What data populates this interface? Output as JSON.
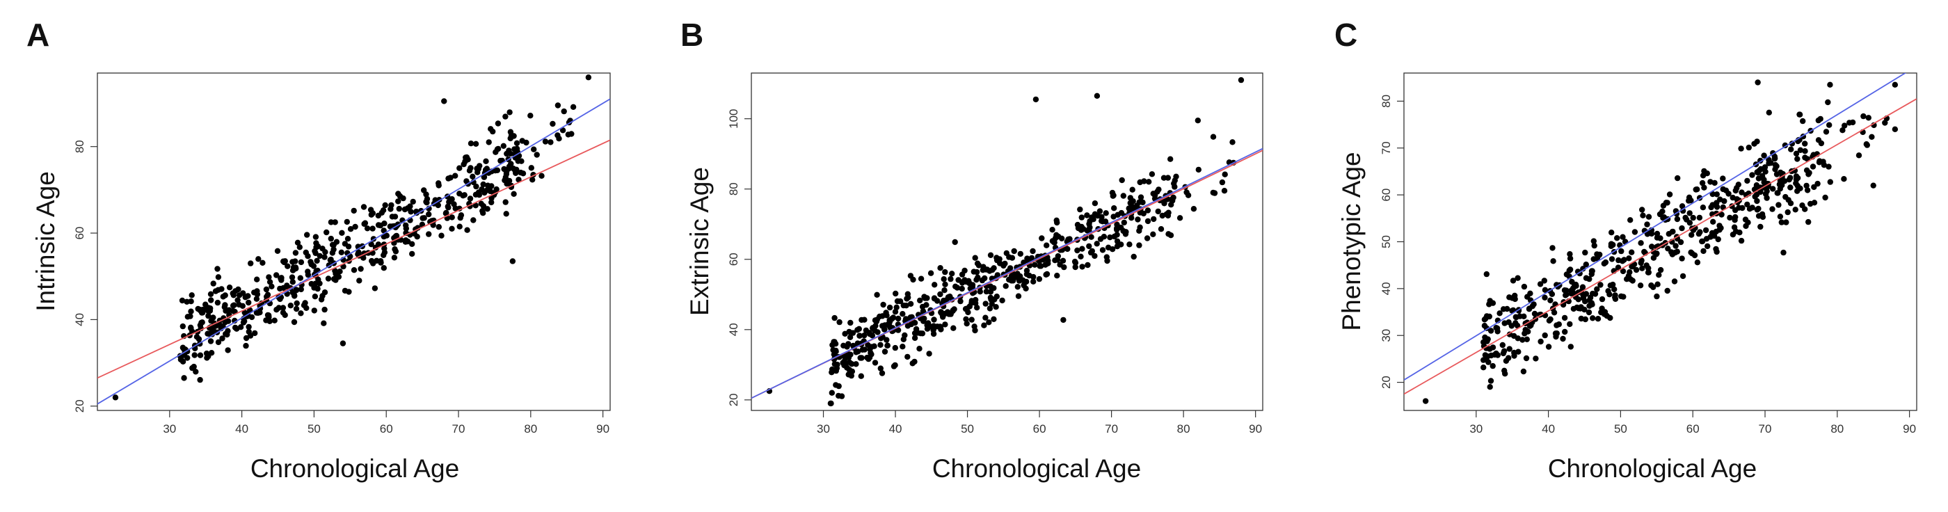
{
  "colors": {
    "point": "#000000",
    "fit_red": "#e8595c",
    "fit_blue": "#5564e6"
  },
  "panels": [
    {
      "letter": "A"
    },
    {
      "letter": "B"
    },
    {
      "letter": "C"
    }
  ],
  "chart_data": [
    {
      "type": "scatter",
      "title": "",
      "xlabel": "Chronological Age",
      "ylabel": "Intrinsic Age",
      "xlim": [
        20,
        91
      ],
      "ylim": [
        19,
        97
      ],
      "xticks": [
        30,
        40,
        50,
        60,
        70,
        80,
        90
      ],
      "yticks": [
        20,
        40,
        60,
        80
      ],
      "x_range_points": [
        31,
        87
      ],
      "point_count": 560,
      "trend": {
        "slope": 0.9,
        "intercept": 6.5,
        "sd": 4.5
      },
      "highlighted_points": [
        {
          "x": 22.5,
          "y": 22
        },
        {
          "x": 68,
          "y": 90.5
        },
        {
          "x": 88,
          "y": 96
        },
        {
          "x": 54,
          "y": 34.5
        },
        {
          "x": 77.5,
          "y": 53.5
        },
        {
          "x": 32,
          "y": 26.5
        }
      ],
      "fit_lines": [
        {
          "name": "",
          "color": "#e8595c",
          "points": [
            [
              20,
              26.5
            ],
            [
              91,
              81.5
            ]
          ]
        },
        {
          "name": "",
          "color": "#5564e6",
          "points": [
            [
              20,
              20.5
            ],
            [
              91,
              91
            ]
          ]
        }
      ]
    },
    {
      "type": "scatter",
      "title": "",
      "xlabel": "Chronological Age",
      "ylabel": "Extrinsic Age",
      "xlim": [
        20,
        91
      ],
      "ylim": [
        17,
        113
      ],
      "xticks": [
        30,
        40,
        50,
        60,
        70,
        80,
        90
      ],
      "yticks": [
        20,
        40,
        60,
        80,
        100
      ],
      "x_range_points": [
        31,
        87
      ],
      "point_count": 560,
      "trend": {
        "slope": 1.0,
        "intercept": 0.0,
        "sd": 5.0
      },
      "highlighted_points": [
        {
          "x": 22.5,
          "y": 22.5
        },
        {
          "x": 59.5,
          "y": 105.5
        },
        {
          "x": 68,
          "y": 106.5
        },
        {
          "x": 88,
          "y": 111
        },
        {
          "x": 82,
          "y": 99.5
        },
        {
          "x": 31,
          "y": 19
        }
      ],
      "fit_lines": [
        {
          "name": "",
          "color": "#e8595c",
          "points": [
            [
              20,
              20.5
            ],
            [
              91,
              91
            ]
          ]
        },
        {
          "name": "",
          "color": "#5564e6",
          "points": [
            [
              20,
              20.5
            ],
            [
              91,
              91.5
            ]
          ]
        }
      ]
    },
    {
      "type": "scatter",
      "title": "",
      "xlabel": "Chronological Age",
      "ylabel": "Phenotypic Age",
      "xlim": [
        20,
        91
      ],
      "ylim": [
        14,
        86
      ],
      "xticks": [
        30,
        40,
        50,
        60,
        70,
        80,
        90
      ],
      "yticks": [
        20,
        30,
        40,
        50,
        60,
        70,
        80
      ],
      "x_range_points": [
        31,
        87
      ],
      "point_count": 560,
      "trend": {
        "slope": 0.88,
        "intercept": 0.7,
        "sd": 5.0
      },
      "highlighted_points": [
        {
          "x": 23,
          "y": 16
        },
        {
          "x": 69,
          "y": 84
        },
        {
          "x": 79,
          "y": 83.5
        },
        {
          "x": 88,
          "y": 83.5
        },
        {
          "x": 88,
          "y": 74
        },
        {
          "x": 85,
          "y": 62
        }
      ],
      "fit_lines": [
        {
          "name": "",
          "color": "#e8595c",
          "points": [
            [
              20,
              17.5
            ],
            [
              91,
              80.5
            ]
          ]
        },
        {
          "name": "",
          "color": "#5564e6",
          "points": [
            [
              20,
              20.5
            ],
            [
              91,
              87.5
            ]
          ]
        }
      ]
    }
  ]
}
